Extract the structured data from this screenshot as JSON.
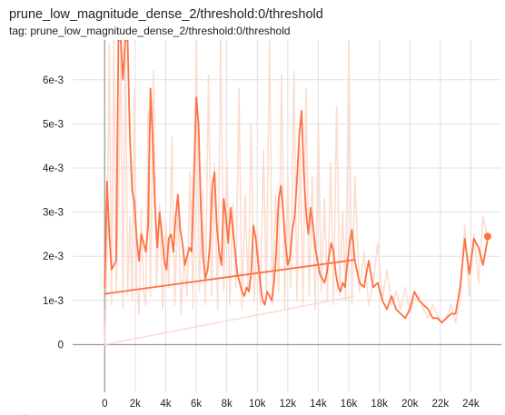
{
  "card": {
    "title": "prune_low_magnitude_dense_2/threshold:0/threshold",
    "subtitle": "tag: prune_low_magnitude_dense_2/threshold:0/threshold"
  },
  "colors": {
    "smoothed": "#ff7043",
    "raw": "#fcd9cc",
    "axis": "#999999",
    "grid": "#e0e0e0"
  },
  "chart_data": {
    "type": "line",
    "title": "prune_low_magnitude_dense_2/threshold:0/threshold",
    "xlim": [
      -2100,
      26000
    ],
    "ylim": [
      -0.00108,
      0.0069
    ],
    "x_ticks": [
      0,
      2000,
      4000,
      6000,
      8000,
      10000,
      12000,
      14000,
      16000,
      18000,
      20000,
      22000,
      24000
    ],
    "x_tick_labels": [
      "0",
      "2k",
      "4k",
      "6k",
      "8k",
      "10k",
      "12k",
      "14k",
      "16k",
      "18k",
      "20k",
      "22k",
      "24k"
    ],
    "y_ticks": [
      0,
      0.001,
      0.002,
      0.003,
      0.004,
      0.005,
      0.006
    ],
    "y_tick_labels": [
      "0",
      "1e-3",
      "2e-3",
      "3e-3",
      "4e-3",
      "5e-3",
      "6e-3"
    ],
    "grid": true,
    "series": [
      {
        "role": "raw",
        "x": [
          0,
          150,
          300,
          450,
          600,
          750,
          900,
          1050,
          1200,
          1350,
          1500,
          1650,
          1800,
          1950,
          2100,
          2250,
          2400,
          2550,
          2700,
          2850,
          3000,
          3200,
          3400,
          3600,
          3800,
          4000,
          4200,
          4400,
          4600,
          4800,
          5000,
          5200,
          5400,
          5600,
          5800,
          6000,
          6200,
          6400,
          6600,
          6800,
          7000,
          7200,
          7400,
          7600,
          7800,
          8000,
          8200,
          8400,
          8600,
          8800,
          9000,
          9200,
          9400,
          9600,
          9800,
          10000,
          10200,
          10400,
          10600,
          10800,
          11000,
          11200,
          11400,
          11600,
          11800,
          12000,
          12200,
          12400,
          12600,
          12800,
          13000,
          13200,
          13400,
          13600,
          13800,
          14000,
          14200,
          14400,
          14600,
          14800,
          15000,
          15200,
          15400,
          15600,
          15800,
          16000,
          16200,
          16400,
          16700,
          17000,
          17300,
          17600,
          17900,
          18200,
          18500,
          18800,
          19100,
          19400,
          19700,
          20000,
          20300,
          20600,
          20900,
          21200,
          21500,
          21800,
          22100,
          22400,
          22700,
          23000,
          23300,
          23600,
          23900,
          24200,
          24500,
          24800,
          25100
        ],
        "y": [
          0,
          0.0019,
          0.0068,
          0.0009,
          0.0069,
          0.0012,
          0.0031,
          0.0069,
          0.0008,
          0.0069,
          0.0011,
          0.0029,
          0.001,
          0.0058,
          0.0014,
          0.0007,
          0.0031,
          0.0012,
          0.0009,
          0.0053,
          0.0011,
          0.0062,
          0.0013,
          0.0032,
          0.0008,
          0.0028,
          0.0013,
          0.0047,
          0.0009,
          0.0033,
          0.0007,
          0.002,
          0.0011,
          0.0039,
          0.0008,
          0.0069,
          0.0012,
          0.0035,
          0.0009,
          0.0061,
          0.0011,
          0.0041,
          0.0008,
          0.0069,
          0.0012,
          0.0042,
          0.0009,
          0.0032,
          0.0013,
          0.0058,
          0.0008,
          0.0034,
          0.0012,
          0.005,
          0.001,
          0.0026,
          0.0009,
          0.0044,
          0.0011,
          0.0069,
          0.0009,
          0.0034,
          0.0012,
          0.0061,
          0.0008,
          0.0039,
          0.0013,
          0.0062,
          0.001,
          0.0045,
          0.0009,
          0.0058,
          0.0011,
          0.0038,
          0.0008,
          0.005,
          0.0012,
          0.0033,
          0.001,
          0.0041,
          0.0009,
          0.0054,
          0.0011,
          0.003,
          0.001,
          0.0069,
          0.0009,
          0.0038,
          0.0012,
          0.0021,
          0.0009,
          0.0014,
          0.0023,
          0.001,
          0.0017,
          0.0009,
          0.0012,
          0.0008,
          0.0013,
          0.0007,
          0.001,
          0.0011,
          0.0008,
          0.0006,
          0.0009,
          0.0007,
          0.0005,
          0.0006,
          0.0009,
          0.0005,
          0.001,
          0.0027,
          0.0011,
          0.0025,
          0.0014,
          0.0029,
          0.0024
        ]
      },
      {
        "role": "raw",
        "x": [
          0,
          16400
        ],
        "y": [
          0,
          0.0011
        ]
      },
      {
        "role": "smoothed",
        "x": [
          0,
          150,
          300,
          450,
          600,
          750,
          900,
          1050,
          1200,
          1350,
          1500,
          1650,
          1800,
          1950,
          2100,
          2250,
          2400,
          2550,
          2700,
          2850,
          3000,
          3150,
          3300,
          3450,
          3600,
          3750,
          3900,
          4050,
          4200,
          4350,
          4500,
          4650,
          4800,
          4950,
          5100,
          5250,
          5400,
          5550,
          5700,
          5850,
          6000,
          6150,
          6300,
          6450,
          6600,
          6750,
          6900,
          7050,
          7200,
          7350,
          7500,
          7650,
          7800,
          7950,
          8100,
          8250,
          8400,
          8550,
          8700,
          8850,
          9000,
          9150,
          9300,
          9450,
          9600,
          9750,
          9900,
          10050,
          10200,
          10350,
          10500,
          10650,
          10800,
          10950,
          11100,
          11250,
          11400,
          11550,
          11700,
          11850,
          12000,
          12150,
          12300,
          12450,
          12600,
          12750,
          12900,
          13050,
          13200,
          13350,
          13500,
          13650,
          13800,
          13950,
          14100,
          14250,
          14400,
          14550,
          14700,
          14850,
          15000,
          15150,
          15300,
          15450,
          15600,
          15750,
          15900,
          16050,
          16200,
          16400
        ],
        "y": [
          0.0013,
          0.0037,
          0.0025,
          0.0017,
          0.0018,
          0.0019,
          0.0069,
          0.0069,
          0.006,
          0.0069,
          0.0069,
          0.0047,
          0.0035,
          0.0032,
          0.0024,
          0.0019,
          0.0025,
          0.0023,
          0.0021,
          0.0027,
          0.0058,
          0.0046,
          0.0031,
          0.0022,
          0.003,
          0.0025,
          0.0019,
          0.0017,
          0.0024,
          0.0025,
          0.0021,
          0.0029,
          0.0034,
          0.0026,
          0.0023,
          0.0018,
          0.002,
          0.0022,
          0.0021,
          0.0038,
          0.0056,
          0.005,
          0.0031,
          0.002,
          0.0015,
          0.0017,
          0.0023,
          0.0036,
          0.0039,
          0.0027,
          0.0021,
          0.0018,
          0.0033,
          0.0029,
          0.0023,
          0.0031,
          0.0026,
          0.0021,
          0.0016,
          0.0014,
          0.0012,
          0.0011,
          0.0013,
          0.0012,
          0.0016,
          0.0027,
          0.0024,
          0.0019,
          0.0014,
          0.001,
          0.0009,
          0.0012,
          0.0011,
          0.001,
          0.0014,
          0.0021,
          0.0033,
          0.0036,
          0.003,
          0.0023,
          0.0018,
          0.002,
          0.0026,
          0.0029,
          0.0037,
          0.0047,
          0.0053,
          0.0039,
          0.003,
          0.0025,
          0.0031,
          0.0027,
          0.0022,
          0.0019,
          0.0016,
          0.0015,
          0.0014,
          0.0016,
          0.002,
          0.0023,
          0.0021,
          0.0016,
          0.0013,
          0.0012,
          0.0014,
          0.0013,
          0.0018,
          0.0023,
          0.0026,
          0.0019
        ]
      },
      {
        "role": "smoothed",
        "x": [
          0,
          16400
        ],
        "y": [
          0.00115,
          0.00192
        ]
      },
      {
        "role": "smoothed",
        "x": [
          16400,
          16700,
          17000,
          17300,
          17600,
          17900,
          18200,
          18500,
          18800,
          19100,
          19400,
          19700,
          20000,
          20300,
          20600,
          20900,
          21200,
          21500,
          21800,
          22100,
          22400,
          22700,
          23000,
          23300,
          23600,
          23900,
          24200,
          24500,
          24800,
          25100
        ],
        "y": [
          0.0019,
          0.0014,
          0.0013,
          0.0019,
          0.0013,
          0.0014,
          0.001,
          0.0008,
          0.0011,
          0.0008,
          0.0007,
          0.0006,
          0.0008,
          0.0012,
          0.001,
          0.0009,
          0.0008,
          0.0006,
          0.0006,
          0.0005,
          0.0006,
          0.0007,
          0.0007,
          0.0013,
          0.0024,
          0.0016,
          0.0024,
          0.0022,
          0.0018,
          0.0024
        ]
      }
    ],
    "last_point": {
      "x": 25100,
      "y": 0.00245
    }
  }
}
